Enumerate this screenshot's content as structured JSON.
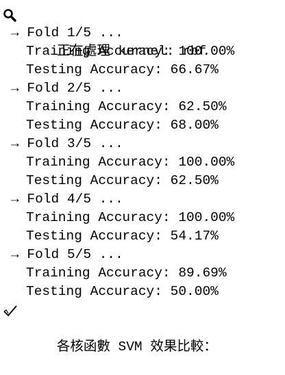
{
  "header": "正在處理 kernel: rbf",
  "folds": [
    {
      "label": "→ Fold 1/5 ...",
      "training": "Training Accuracy: 100.00%",
      "testing": "Testing Accuracy: 66.67%"
    },
    {
      "label": "→ Fold 2/5 ...",
      "training": "Training Accuracy: 62.50%",
      "testing": "Testing Accuracy: 68.00%"
    },
    {
      "label": "→ Fold 3/5 ...",
      "training": "Training Accuracy: 100.00%",
      "testing": "Testing Accuracy: 62.50%"
    },
    {
      "label": "→ Fold 4/5 ...",
      "training": "Training Accuracy: 100.00%",
      "testing": "Testing Accuracy: 54.17%"
    },
    {
      "label": "→ Fold 5/5 ...",
      "training": "Training Accuracy: 89.69%",
      "testing": "Testing Accuracy: 50.00%"
    }
  ],
  "footer": "各核函數 SVM 效果比較："
}
